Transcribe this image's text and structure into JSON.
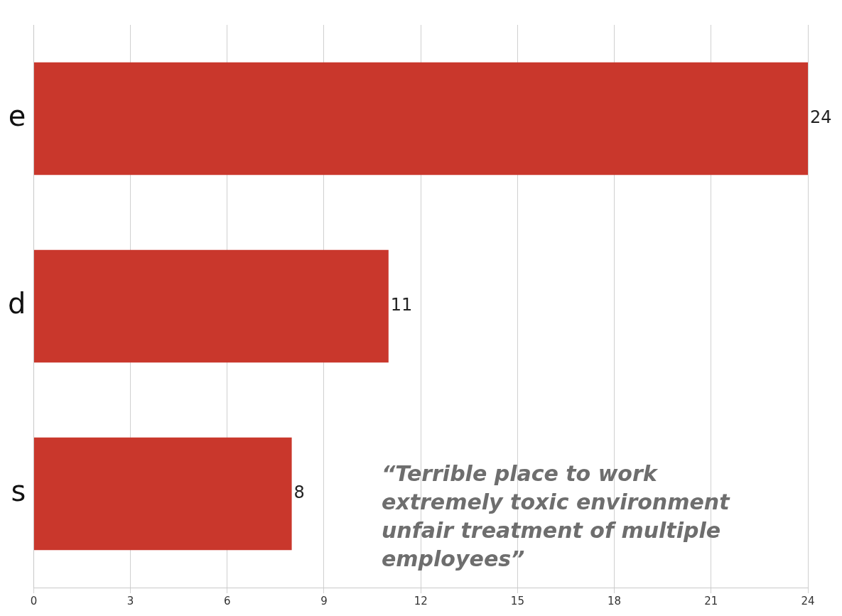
{
  "chart_data": {
    "type": "bar",
    "orientation": "horizontal",
    "categories": [
      "e",
      "d",
      "s"
    ],
    "values": [
      24,
      11,
      8
    ],
    "color": "#c9372c",
    "xlim": [
      0,
      24
    ],
    "xticks": [
      0,
      3,
      6,
      9,
      12,
      15,
      18,
      21,
      24
    ],
    "grid": "x",
    "legend": false,
    "data_labels": true,
    "annotations": [
      "“Terrible place to work extremely toxic environment unfair treatment of multiple employees”"
    ]
  }
}
